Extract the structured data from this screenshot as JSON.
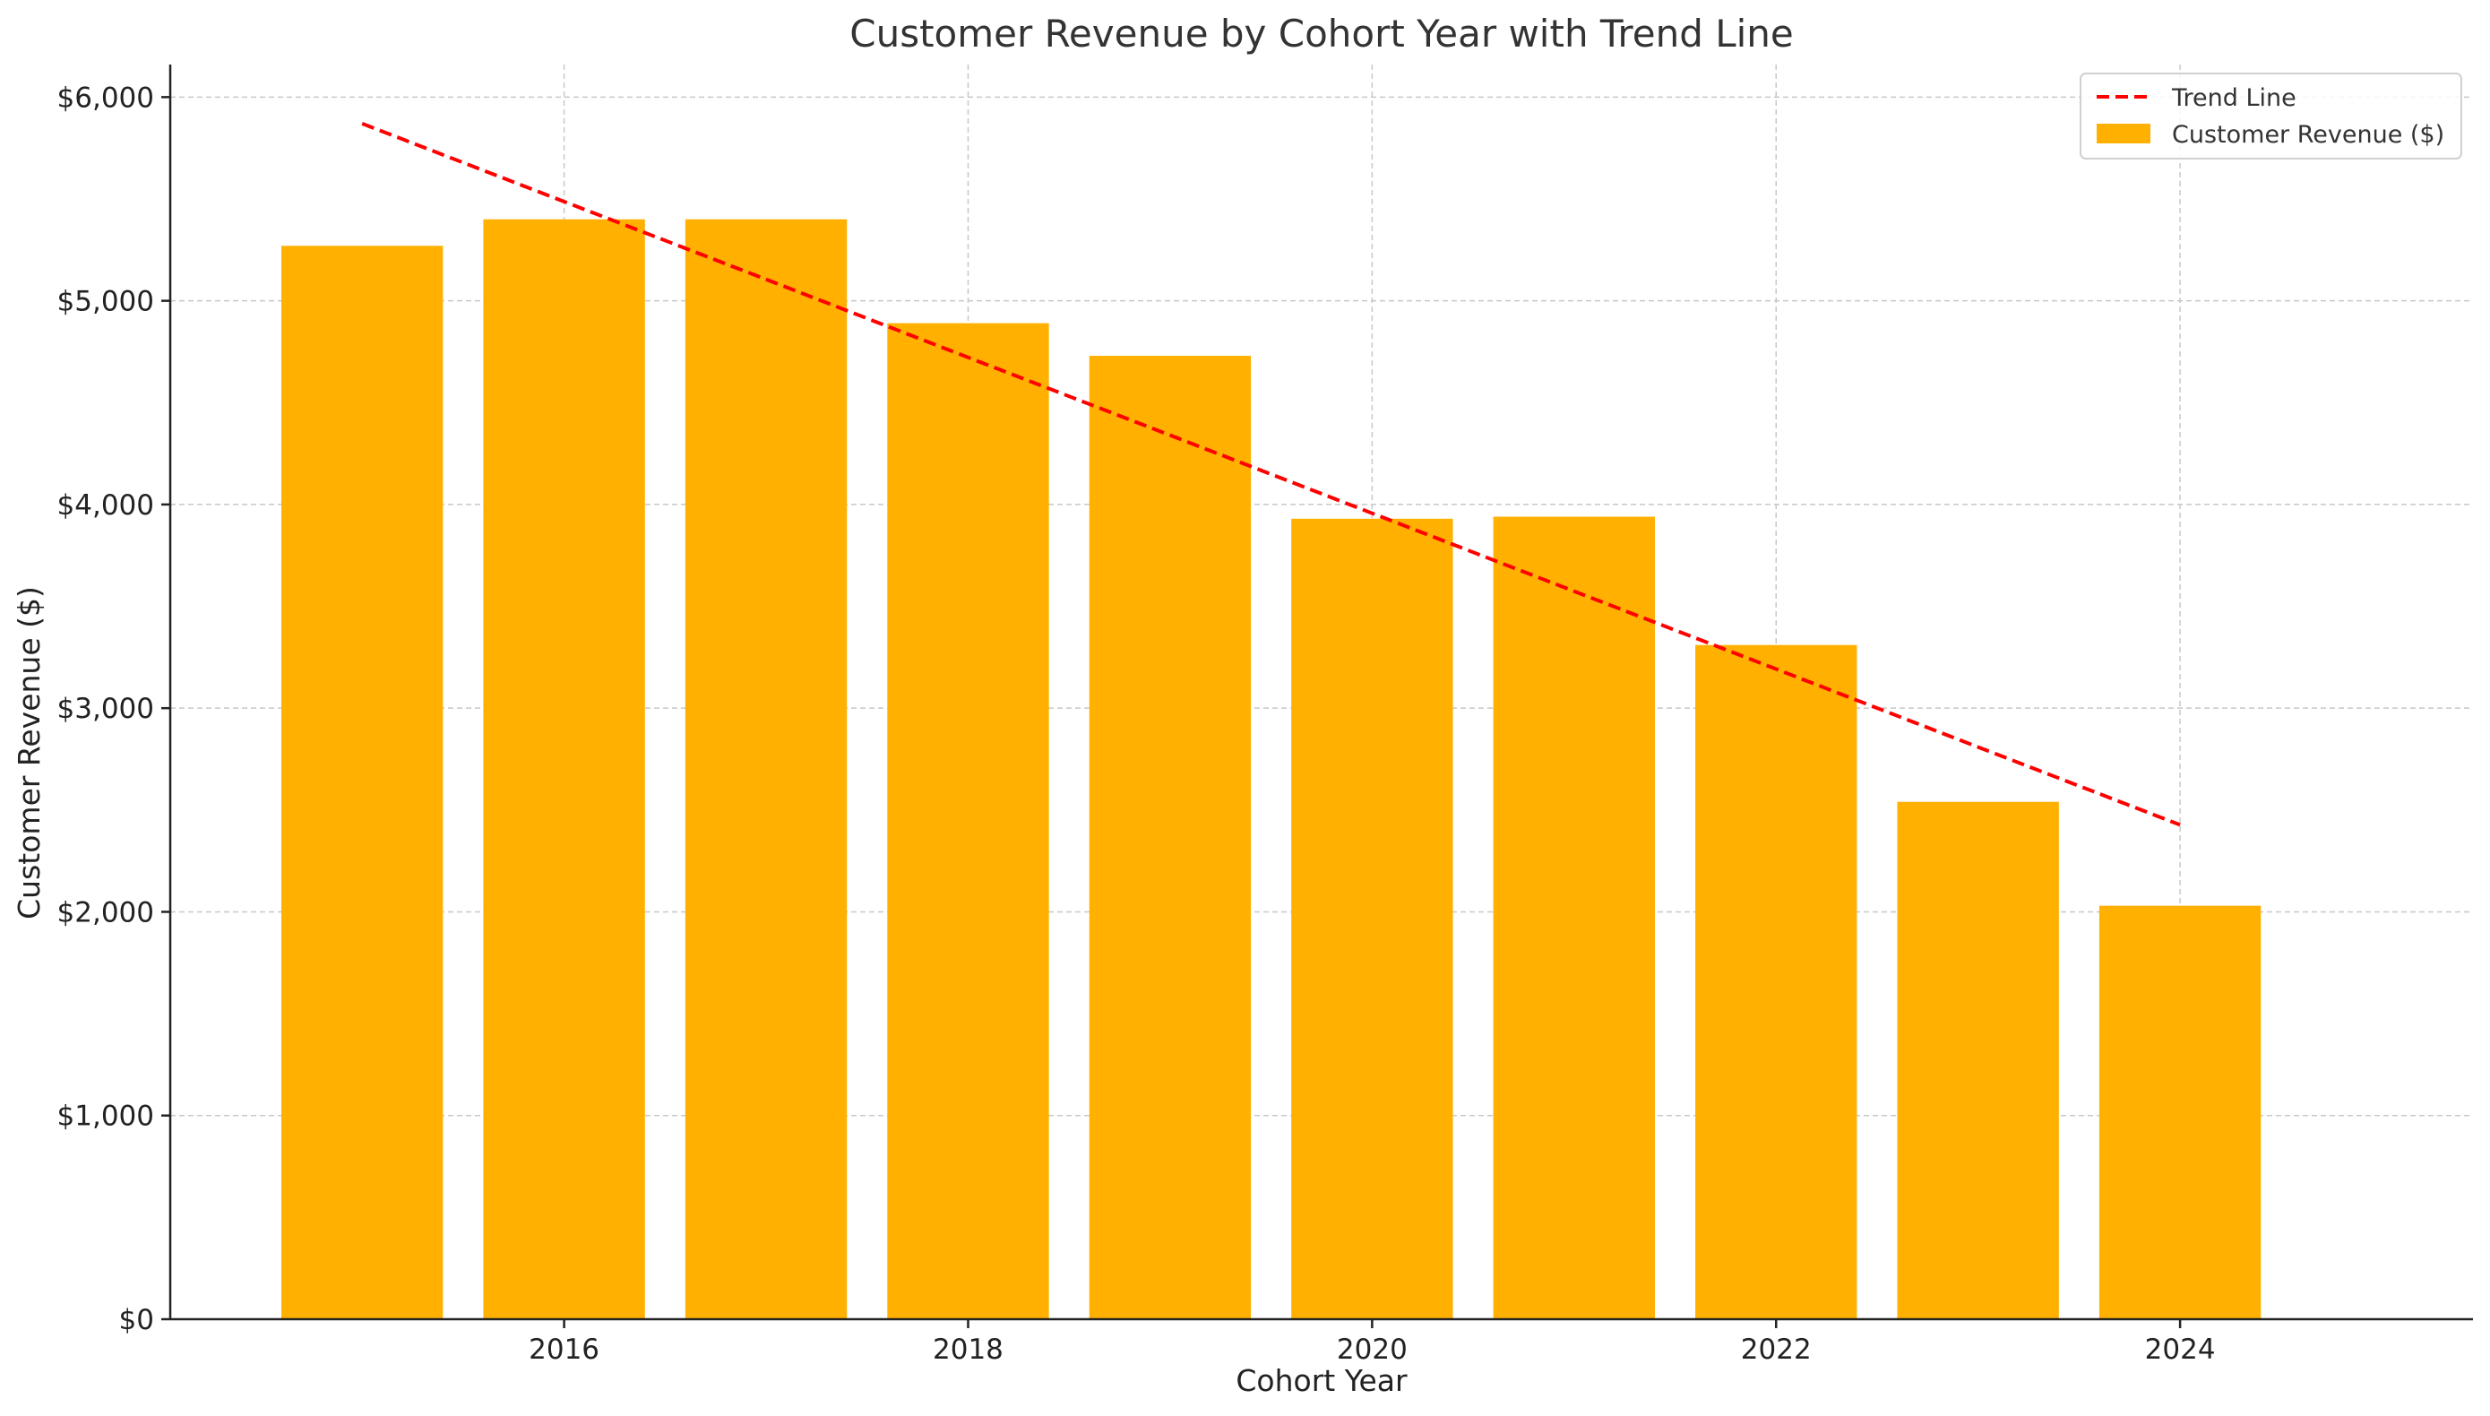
{
  "chart_data": {
    "type": "bar",
    "title": "Customer Revenue by Cohort Year with Trend Line",
    "xlabel": "Cohort Year",
    "ylabel": "Customer Revenue ($)",
    "x": [
      2015,
      2016,
      2017,
      2018,
      2019,
      2020,
      2021,
      2022,
      2023,
      2024
    ],
    "xlim": [
      2014.05,
      2025.45
    ],
    "ylim": [
      0,
      6160
    ],
    "x_ticks": [
      2016,
      2018,
      2020,
      2022,
      2024
    ],
    "x_tick_labels": [
      "2016",
      "2018",
      "2020",
      "2022",
      "2024"
    ],
    "y_ticks": [
      0,
      1000,
      2000,
      3000,
      4000,
      5000,
      6000
    ],
    "y_tick_labels": [
      "$0",
      "$1,000",
      "$2,000",
      "$3,000",
      "$4,000",
      "$5,000",
      "$6,000"
    ],
    "grid": true,
    "legend_position": "top-right",
    "series": [
      {
        "name": "Customer Revenue ($)",
        "type": "bar",
        "color": "#FFB000",
        "values": [
          5270,
          5400,
          5400,
          4890,
          4730,
          3930,
          3940,
          3310,
          2540,
          2030
        ]
      },
      {
        "name": "Trend Line",
        "type": "line",
        "style": "dashed",
        "color": "#FF0000",
        "values": [
          5870,
          5487,
          5105,
          4722,
          4340,
          3957,
          3574,
          3192,
          2809,
          2427
        ]
      }
    ]
  }
}
